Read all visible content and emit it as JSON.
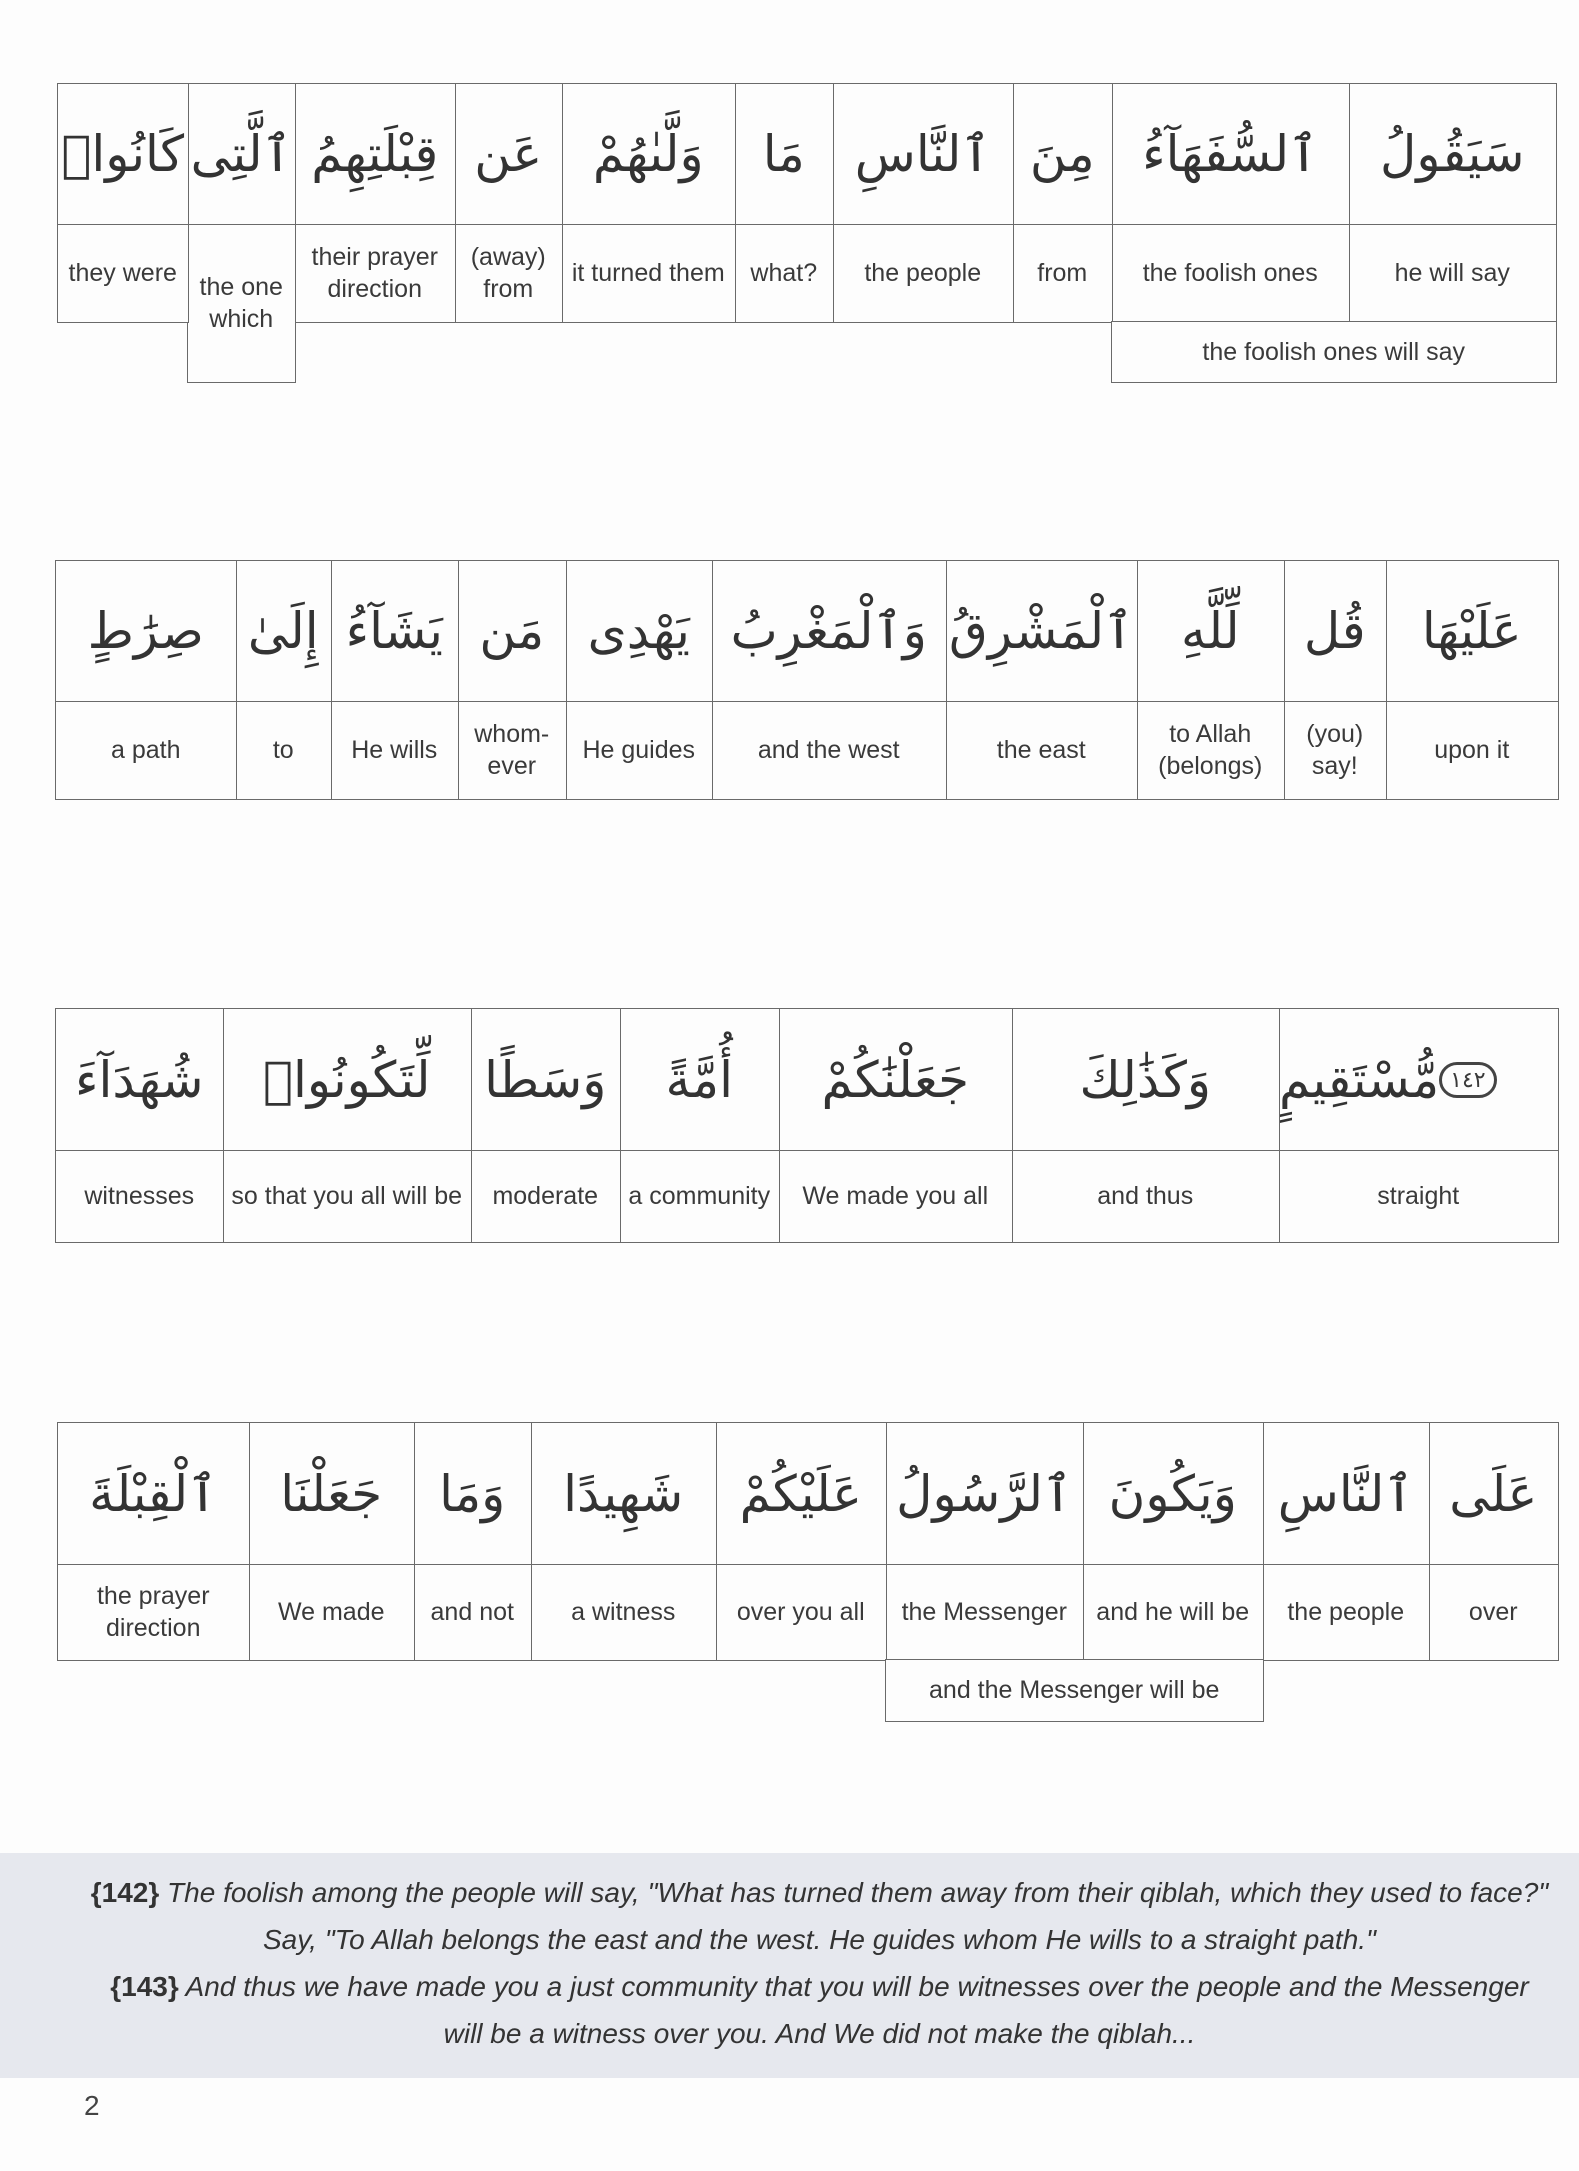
{
  "rows": [
    {
      "cells": [
        {
          "arabic": "سَيَقُولُ",
          "english": "he will say"
        },
        {
          "arabic": "ٱلسُّفَهَآءُ",
          "english": "the foolish ones"
        },
        {
          "arabic": "مِنَ",
          "english": "from"
        },
        {
          "arabic": "ٱلنَّاسِ",
          "english": "the people"
        },
        {
          "arabic": "مَا",
          "english": "what?"
        },
        {
          "arabic": "وَلَّىٰهُمْ",
          "english": "it turned them"
        },
        {
          "arabic": "عَن",
          "english": "(away) from"
        },
        {
          "arabic": "قِبْلَتِهِمُ",
          "english": "their prayer direction"
        },
        {
          "arabic": "ٱلَّتِى",
          "english": "the one which"
        },
        {
          "arabic": "كَانُوا۟",
          "english": "they were"
        }
      ],
      "group": "the foolish ones will say"
    },
    {
      "cells": [
        {
          "arabic": "عَلَيْهَا",
          "english": "upon it"
        },
        {
          "arabic": "قُل",
          "english": "(you) say!"
        },
        {
          "arabic": "لِّلَّهِ",
          "english": "to Allah (belongs)"
        },
        {
          "arabic": "ٱلْمَشْرِقُ",
          "english": "the east"
        },
        {
          "arabic": "وَٱلْمَغْرِبُ",
          "english": "and the west"
        },
        {
          "arabic": "يَهْدِى",
          "english": "He guides"
        },
        {
          "arabic": "مَن",
          "english": "whom-ever"
        },
        {
          "arabic": "يَشَآءُ",
          "english": "He wills"
        },
        {
          "arabic": "إِلَىٰ",
          "english": "to"
        },
        {
          "arabic": "صِرَٰطٍ",
          "english": "a path"
        }
      ]
    },
    {
      "cells": [
        {
          "arabic": "مُّسْتَقِيمٍ",
          "english": "straight",
          "marker": "١٤٢"
        },
        {
          "arabic": "وَكَذَٰلِكَ",
          "english": "and thus"
        },
        {
          "arabic": "جَعَلْنَٰكُمْ",
          "english": "We made you all"
        },
        {
          "arabic": "أُمَّةً",
          "english": "a community"
        },
        {
          "arabic": "وَسَطًا",
          "english": "moderate"
        },
        {
          "arabic": "لِّتَكُونُوا۟",
          "english": "so that you all will be"
        },
        {
          "arabic": "شُهَدَآءَ",
          "english": "witnesses"
        }
      ]
    },
    {
      "cells": [
        {
          "arabic": "عَلَى",
          "english": "over"
        },
        {
          "arabic": "ٱلنَّاسِ",
          "english": "the people"
        },
        {
          "arabic": "وَيَكُونَ",
          "english": "and he will be"
        },
        {
          "arabic": "ٱلرَّسُولُ",
          "english": "the Messenger"
        },
        {
          "arabic": "عَلَيْكُمْ",
          "english": "over you all"
        },
        {
          "arabic": "شَهِيدًا",
          "english": "a witness"
        },
        {
          "arabic": "وَمَا",
          "english": "and not"
        },
        {
          "arabic": "جَعَلْنَا",
          "english": "We made"
        },
        {
          "arabic": "ٱلْقِبْلَةَ",
          "english": "the prayer direction"
        }
      ],
      "group": "and the Messenger will be"
    }
  ],
  "translation": {
    "v142_num": "{142}",
    "v142_text": " The foolish among the people will say, \"What has turned them away from their qiblah, which they used to face?\" Say, \"To Allah belongs the east and the west. He guides whom He wills to a straight path.\"",
    "v143_num": "{143}",
    "v143_text": " And thus we have made you a just community that you will be witnesses over the people and the Messenger will be a witness over you. And We did not make the qiblah..."
  },
  "page_number": "2"
}
